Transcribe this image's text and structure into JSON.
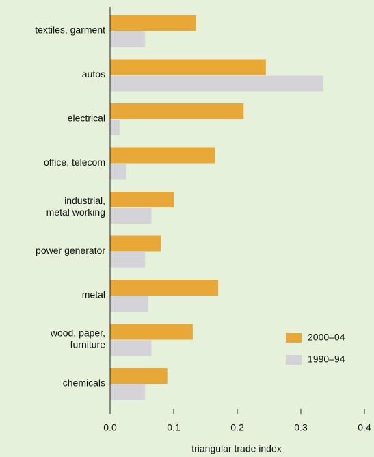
{
  "chart_data": {
    "type": "barh",
    "x_label": "triangular trade index",
    "categories": [
      [
        "textiles, garment"
      ],
      [
        "autos"
      ],
      [
        "electrical"
      ],
      [
        "office, telecom"
      ],
      [
        "industrial,",
        "metal working"
      ],
      [
        "power generator"
      ],
      [
        "metal"
      ],
      [
        "wood, paper,",
        "furniture"
      ],
      [
        "chemicals"
      ]
    ],
    "series": [
      {
        "name": "2000–04",
        "color": "#e8a838",
        "values": [
          0.135,
          0.245,
          0.21,
          0.165,
          0.1,
          0.08,
          0.17,
          0.13,
          0.09
        ]
      },
      {
        "name": "1990–94",
        "color": "#d4d4d8",
        "values": [
          0.055,
          0.335,
          0.015,
          0.025,
          0.065,
          0.055,
          0.06,
          0.065,
          0.055
        ]
      }
    ],
    "xlim": [
      0,
      0.4
    ],
    "xticks": [
      {
        "value": 0,
        "label": "0.0"
      },
      0.1,
      0.2,
      0.3,
      0.4
    ],
    "legend": "lower right"
  }
}
